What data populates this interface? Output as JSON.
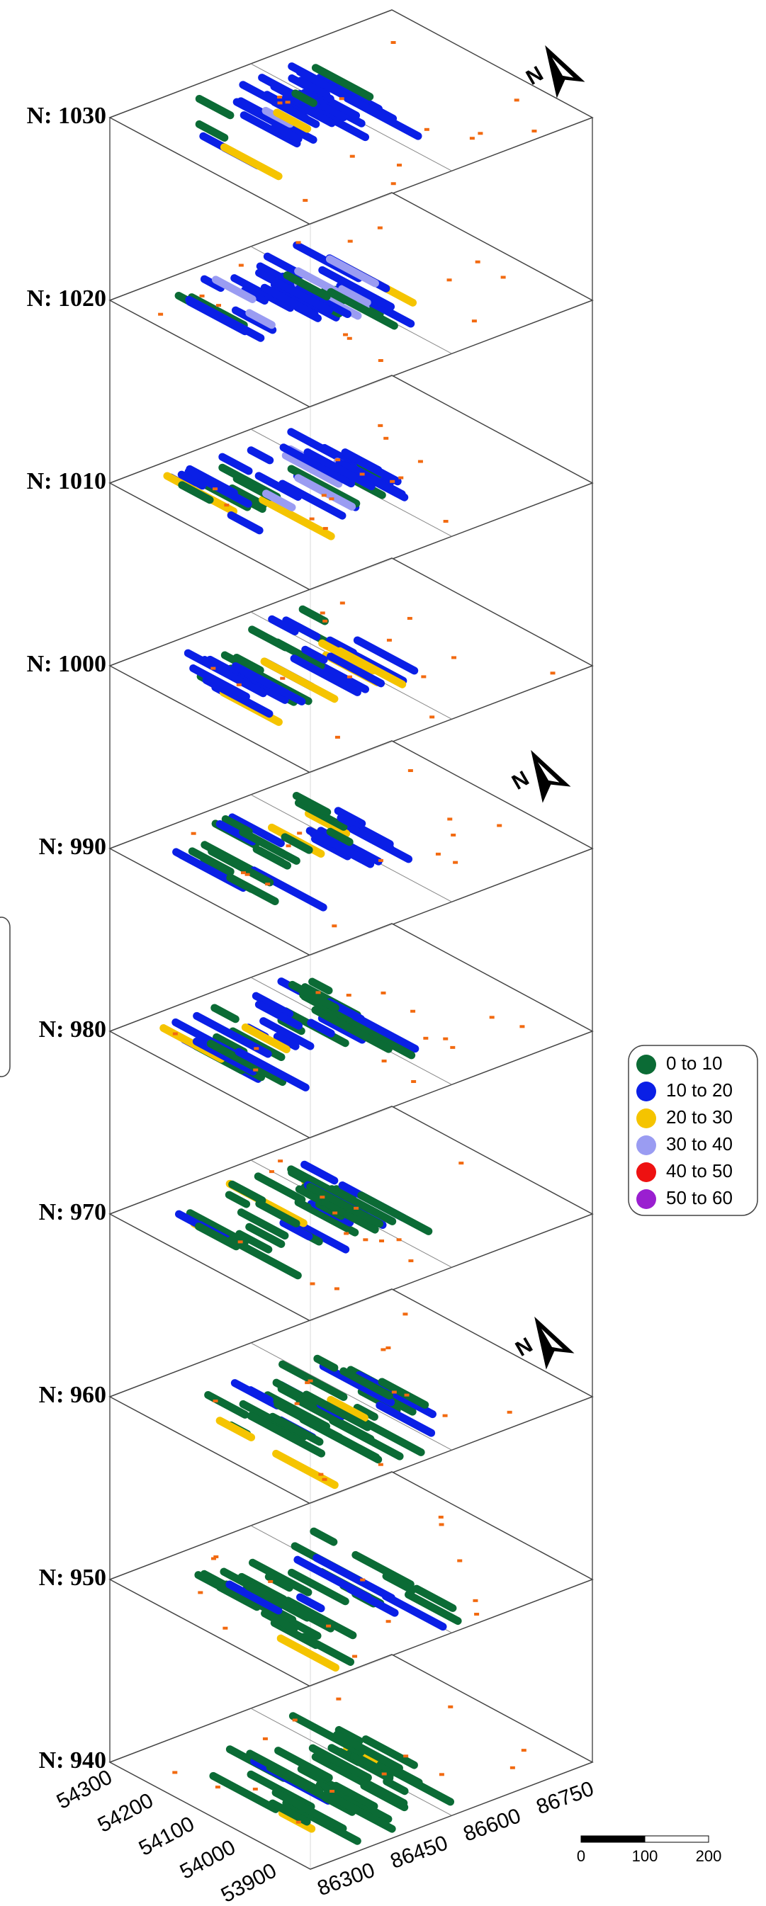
{
  "levels": [
    "N: 1030",
    "N: 1020",
    "N: 1010",
    "N: 1000",
    "N: 990",
    "N: 980",
    "N: 970",
    "N: 960",
    "N: 950",
    "N: 940"
  ],
  "y_ticks": [
    54300,
    54200,
    54100,
    54000,
    53900
  ],
  "x_ticks": [
    86300,
    86450,
    86600,
    86750
  ],
  "legend": [
    {
      "label": "0 to 10",
      "color": "#0b6b35"
    },
    {
      "label": "10 to 20",
      "color": "#0a1fe6"
    },
    {
      "label": "20 to 30",
      "color": "#f5c400"
    },
    {
      "label": "30 to 40",
      "color": "#9a9cf2"
    },
    {
      "label": "40 to 50",
      "color": "#ee1111"
    },
    {
      "label": "50 to 60",
      "color": "#9a1fd0"
    }
  ],
  "north_label": "N",
  "scale_bar": [
    0,
    100,
    200
  ]
}
